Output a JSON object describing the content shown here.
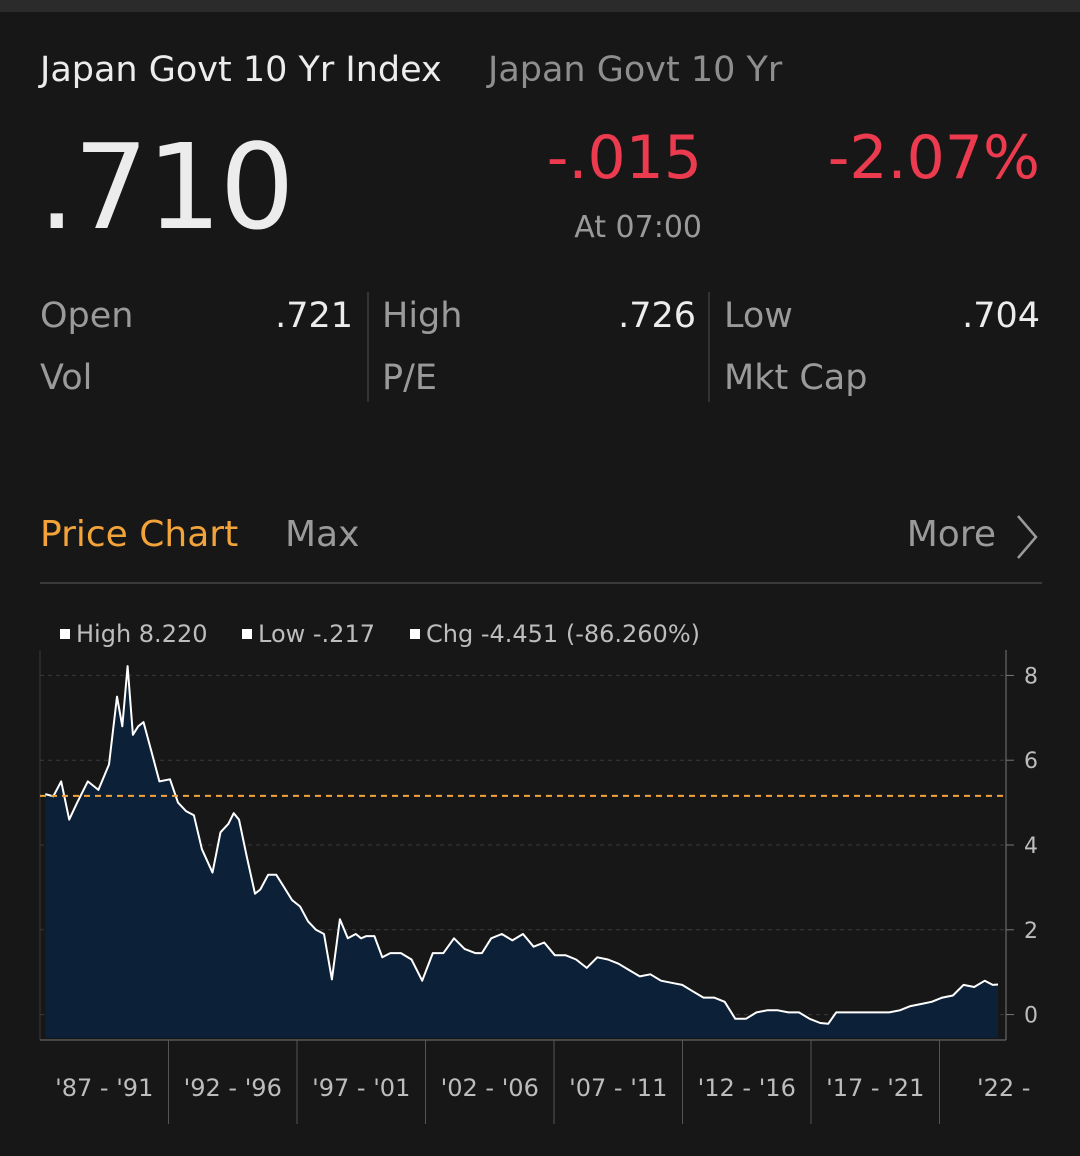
{
  "header": {
    "title": "Japan Govt 10 Yr Index",
    "subtitle": "Japan Govt 10 Yr"
  },
  "quote": {
    "price": ".710",
    "change": "-.015",
    "change_pct": "-2.07%",
    "as_of": "At 07:00",
    "change_color": "#ec3b4f"
  },
  "stats": {
    "open_label": "Open",
    "open_value": ".721",
    "high_label": "High",
    "high_value": ".726",
    "low_label": "Low",
    "low_value": ".704",
    "vol_label": "Vol",
    "pe_label": "P/E",
    "mktcap_label": "Mkt Cap"
  },
  "chart_header": {
    "title": "Price Chart",
    "range": "Max",
    "more_label": "More",
    "more_icon": "chevron-right-icon",
    "title_color": "#f2a33a"
  },
  "chart_data": {
    "type": "area",
    "legend": {
      "high": "High 8.220",
      "low": "Low -.217",
      "chg": "Chg -4.451 (-86.260%)"
    },
    "y_ticks": [
      "8",
      "6",
      "4",
      "2",
      "0"
    ],
    "ylim": [
      -0.6,
      8.6
    ],
    "x_tick_labels": [
      "'87 - '91",
      "'92 - '96",
      "'97 - '01",
      "'02 - '06",
      "'07 - '11",
      "'12 - '16",
      "'17 - '21",
      "'22 -"
    ],
    "xlim": [
      1986.8,
      2023.2
    ],
    "reference_line": {
      "value": 5.16,
      "style": "dashed",
      "color": "#f2a33a"
    },
    "series": [
      {
        "x": [
          1987.0,
          1987.3,
          1987.6,
          1987.9,
          1988.2,
          1988.6,
          1989.0,
          1989.4,
          1989.7,
          1989.9,
          1990.1,
          1990.3,
          1990.5,
          1990.7,
          1991.0,
          1991.3,
          1991.7,
          1992.0,
          1992.3,
          1992.6,
          1992.9,
          1993.3,
          1993.6,
          1993.9,
          1994.1,
          1994.3,
          1994.6,
          1994.9,
          1995.1,
          1995.4,
          1995.7,
          1996.0,
          1996.3,
          1996.6,
          1996.9,
          1997.2,
          1997.5,
          1997.8,
          1998.1,
          1998.4,
          1998.7,
          1998.9,
          1999.1,
          1999.4,
          1999.7,
          2000.0,
          2000.4,
          2000.8,
          2001.2,
          2001.6,
          2002.0,
          2002.4,
          2002.8,
          2003.2,
          2003.45,
          2003.8,
          2004.2,
          2004.6,
          2005.0,
          2005.4,
          2005.8,
          2006.2,
          2006.6,
          2007.0,
          2007.4,
          2007.8,
          2008.2,
          2008.6,
          2009.0,
          2009.4,
          2009.8,
          2010.2,
          2010.6,
          2011.0,
          2011.4,
          2011.8,
          2012.2,
          2012.6,
          2013.0,
          2013.4,
          2013.8,
          2014.2,
          2014.6,
          2015.0,
          2015.4,
          2015.8,
          2016.2,
          2016.5,
          2016.8,
          2017.2,
          2017.6,
          2018.0,
          2018.4,
          2018.8,
          2019.2,
          2019.6,
          2020.0,
          2020.4,
          2020.8,
          2021.2,
          2021.6,
          2022.0,
          2022.4,
          2022.7,
          2022.9
        ],
        "values": [
          5.2,
          5.15,
          5.5,
          4.6,
          5.0,
          5.5,
          5.3,
          5.9,
          7.5,
          6.8,
          8.22,
          6.6,
          6.8,
          6.9,
          6.2,
          5.5,
          5.55,
          5.0,
          4.8,
          4.7,
          3.9,
          3.35,
          4.3,
          4.5,
          4.75,
          4.6,
          3.7,
          2.85,
          2.95,
          3.3,
          3.3,
          3.0,
          2.7,
          2.55,
          2.2,
          2.0,
          1.9,
          0.83,
          2.25,
          1.8,
          1.9,
          1.8,
          1.85,
          1.85,
          1.35,
          1.45,
          1.45,
          1.3,
          0.8,
          1.45,
          1.45,
          1.8,
          1.55,
          1.45,
          1.45,
          1.8,
          1.9,
          1.75,
          1.9,
          1.6,
          1.7,
          1.4,
          1.4,
          1.3,
          1.1,
          1.35,
          1.3,
          1.2,
          1.05,
          0.9,
          0.95,
          0.8,
          0.75,
          0.7,
          0.55,
          0.4,
          0.4,
          0.3,
          -0.1,
          -0.1,
          0.05,
          0.1,
          0.1,
          0.05,
          0.05,
          -0.1,
          -0.2,
          -0.217,
          0.05,
          0.05,
          0.05,
          0.05,
          0.05,
          0.05,
          0.1,
          0.2,
          0.25,
          0.3,
          0.4,
          0.45,
          0.7,
          0.65,
          0.8,
          0.7,
          0.71
        ]
      }
    ],
    "line_color": "#ffffff",
    "fill_color": "#0c2037",
    "grid": "horizontal-dashed",
    "y_axis_side": "right"
  }
}
